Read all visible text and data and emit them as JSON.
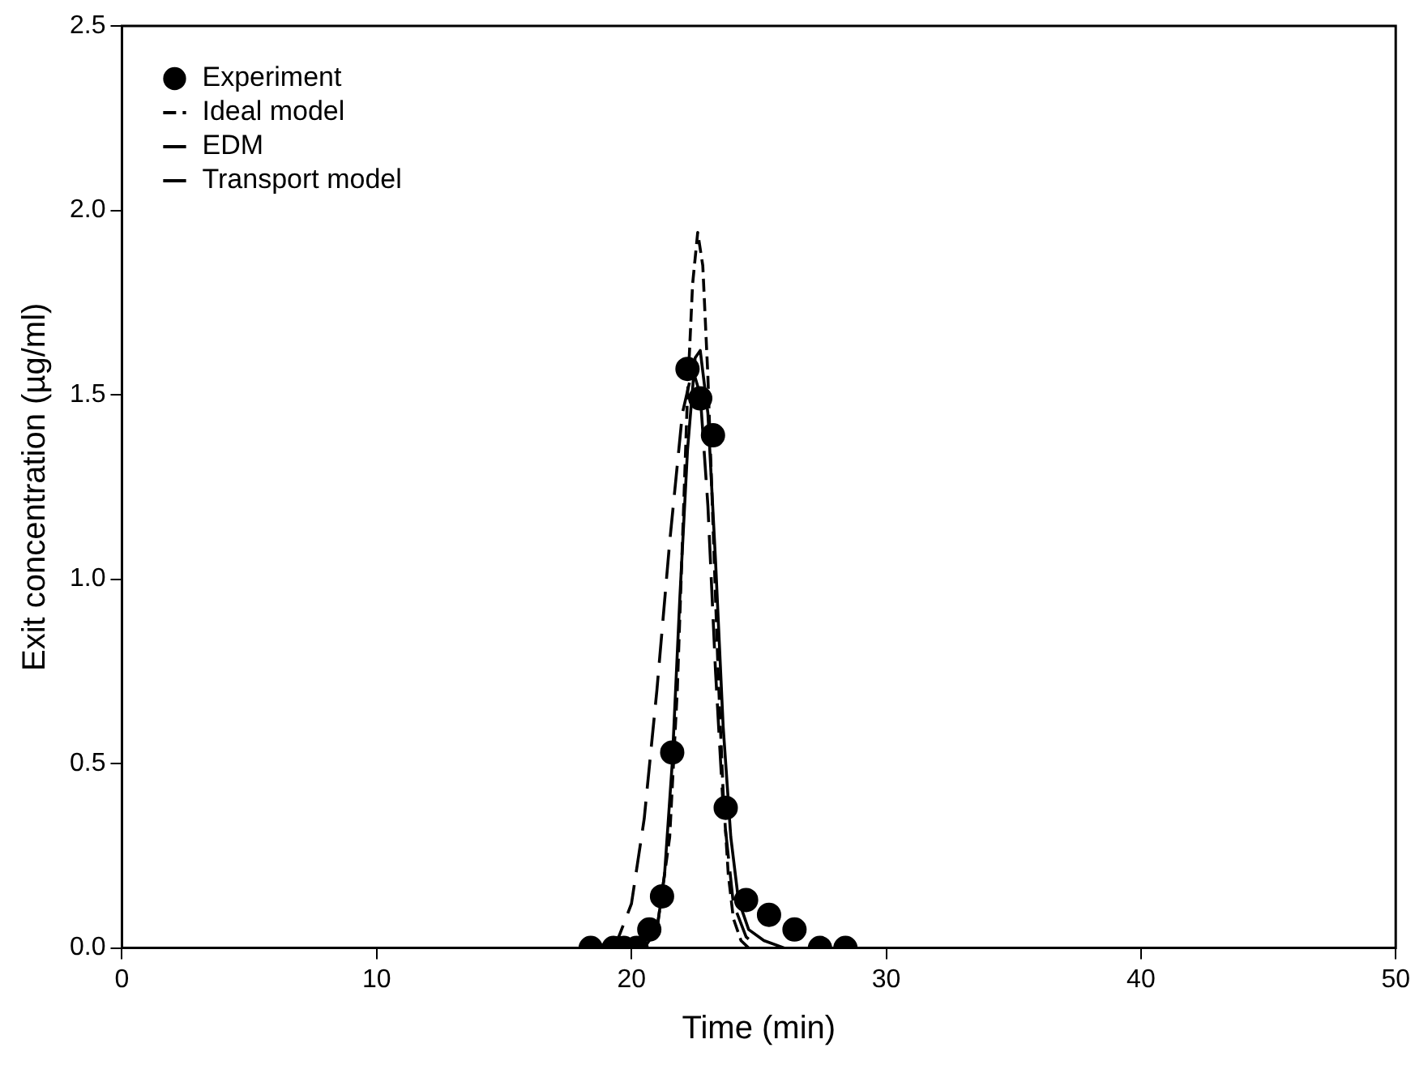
{
  "chart_data": {
    "type": "line",
    "xlabel": "Time (min)",
    "ylabel": "Exit concentration (µg/ml)",
    "xlim": [
      0,
      50
    ],
    "xticks": [
      0,
      10,
      20,
      30,
      40,
      50
    ],
    "ylim": [
      0,
      2.5
    ],
    "yticks": [
      {
        "value": 0,
        "label": "0.0"
      },
      {
        "value": 0.5,
        "label": "0.5"
      },
      {
        "value": 1,
        "label": "1.0"
      },
      {
        "value": 1.5,
        "label": "1.5"
      },
      {
        "value": 2,
        "label": "2.0"
      },
      {
        "value": 2.5,
        "label": "2.5"
      }
    ],
    "grid": false,
    "legend": "top left",
    "series": [
      {
        "name": "Experiment",
        "type": "scatter",
        "marker": "circle",
        "color": "#000000",
        "x": [
          18.4,
          19.3,
          19.7,
          20.2,
          20.7,
          21.2,
          21.6,
          22.2,
          22.7,
          23.2,
          23.7,
          24.5,
          25.4,
          26.4,
          27.4,
          28.4
        ],
        "values": [
          0,
          0,
          0,
          0,
          0.05,
          0.14,
          0.53,
          1.57,
          1.49,
          1.39,
          0.38,
          0.13,
          0.09,
          0.05,
          0,
          0
        ]
      },
      {
        "name": "Ideal model",
        "line_style": "dashed",
        "color": "#000000",
        "x": [
          20.0,
          20.5,
          21.0,
          21.5,
          21.8,
          22.0,
          22.2,
          22.4,
          22.6,
          22.8,
          23.0,
          23.2,
          23.4,
          23.6,
          23.8,
          24.0,
          24.3,
          24.6
        ],
        "values": [
          0,
          0.01,
          0.05,
          0.3,
          0.7,
          1.1,
          1.5,
          1.8,
          1.94,
          1.85,
          1.55,
          1.15,
          0.75,
          0.42,
          0.2,
          0.08,
          0.02,
          0
        ]
      },
      {
        "name": "EDM",
        "line_style": "long-dashed",
        "color": "#000000",
        "x": [
          19.0,
          19.5,
          20.0,
          20.5,
          21.0,
          21.5,
          22.0,
          22.4,
          22.7,
          23.0,
          23.3,
          23.6,
          24.0,
          24.5,
          25.0
        ],
        "values": [
          0,
          0.03,
          0.12,
          0.35,
          0.7,
          1.1,
          1.45,
          1.57,
          1.5,
          1.2,
          0.75,
          0.38,
          0.12,
          0.03,
          0
        ]
      },
      {
        "name": "Transport model",
        "line_style": "solid",
        "color": "#000000",
        "x": [
          20.5,
          21.0,
          21.3,
          21.6,
          21.9,
          22.2,
          22.5,
          22.7,
          23.0,
          23.3,
          23.6,
          23.9,
          24.2,
          24.6,
          25.2,
          26.0
        ],
        "values": [
          0,
          0.05,
          0.2,
          0.5,
          0.95,
          1.35,
          1.6,
          1.62,
          1.45,
          1.05,
          0.6,
          0.3,
          0.13,
          0.05,
          0.02,
          0
        ]
      }
    ]
  }
}
